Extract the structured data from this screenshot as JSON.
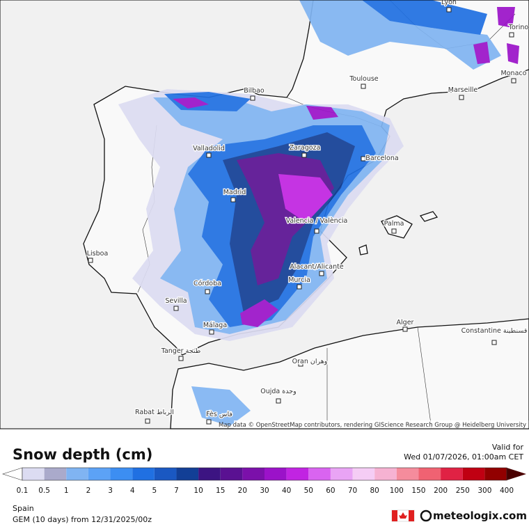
{
  "map": {
    "attribution": "Map data © OpenStreetMap contributors, rendering GIScience Research Group @ Heidelberg University",
    "cities": [
      "Lyon",
      "Torino",
      "Monaco",
      "Marseille",
      "Toulouse",
      "Bilbao",
      "Valladolid",
      "Zaragoza",
      "Barcelona",
      "Madrid",
      "Valencia / València",
      "Palma",
      "Lisboa",
      "Alacant/Alicante",
      "Murcia",
      "Córdoba",
      "Sevilla",
      "Málaga",
      "Tanger طنجة",
      "Alger",
      "Constantine قسنطينة",
      "Oran وهران",
      "Oujda وجدة",
      "Rabat الرباط",
      "Fès فاس"
    ]
  },
  "legend": {
    "title": "Snow depth (cm)",
    "ticks": [
      0.1,
      0.5,
      1,
      2,
      3,
      4,
      5,
      7,
      10,
      15,
      20,
      30,
      40,
      50,
      60,
      70,
      80,
      100,
      150,
      200,
      250,
      300,
      400
    ],
    "colors": [
      "#dcdcf2",
      "#aaaacb",
      "#80b4f2",
      "#5ca2f6",
      "#3c8ef2",
      "#2070e2",
      "#1a58c2",
      "#123f96",
      "#3c1482",
      "#5a1192",
      "#7b10aa",
      "#9b12c9",
      "#c124e2",
      "#d964f0",
      "#e9a4f5",
      "#f5cdf5",
      "#f6b2d2",
      "#f58c9c",
      "#f06272",
      "#e02244",
      "#c00012",
      "#920000"
    ],
    "under_color": "#ffffff",
    "over_color": "#4a0000"
  },
  "footer": {
    "region": "Spain",
    "model": "GEM (10 days) from 12/31/2025/00z",
    "valid_label": "Valid for",
    "valid_time": "Wed 01/07/2026, 01:00am CET",
    "brand": "meteologix.com"
  }
}
